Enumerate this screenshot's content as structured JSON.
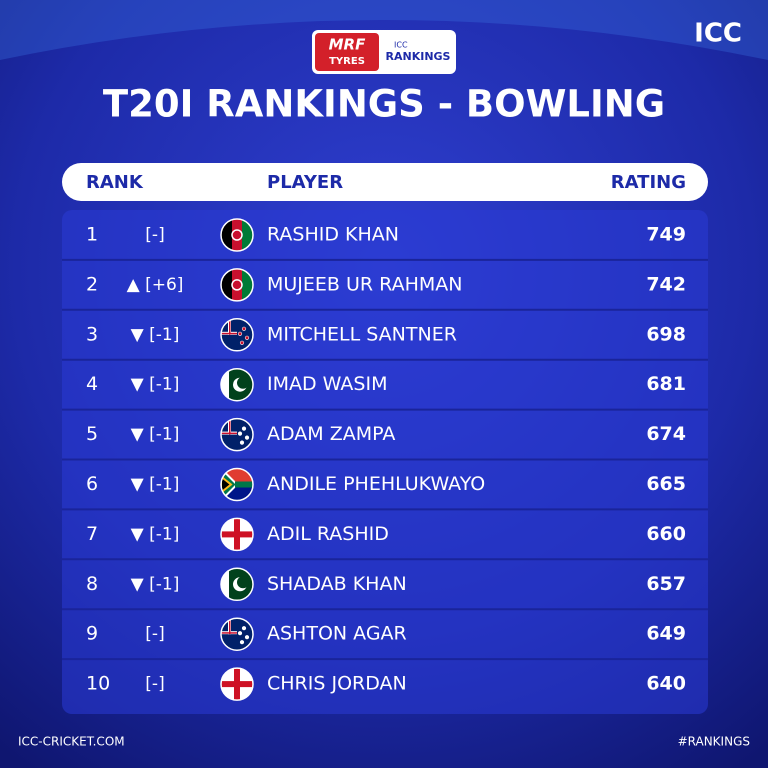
{
  "header": {
    "sponsor_top": "MRF",
    "sponsor_bottom": "TYRES",
    "badge_small": "ICC",
    "badge_text": "RANKINGS",
    "brand": "ICC",
    "title": "T20I RANKINGS - BOWLING"
  },
  "table": {
    "columns": [
      "RANK",
      "PLAYER",
      "RATING"
    ],
    "rows": [
      {
        "rank": 1,
        "change": "[-]",
        "player": "RASHID KHAN",
        "rating": 749
      },
      {
        "rank": 2,
        "change": "▲ [+6]",
        "player": "MUJEEB UR RAHMAN",
        "rating": 742
      },
      {
        "rank": 3,
        "change": "▼ [-1]",
        "player": "MITCHELL SANTNER",
        "rating": 698
      },
      {
        "rank": 4,
        "change": "▼ [-1]",
        "player": "IMAD WASIM",
        "rating": 681
      },
      {
        "rank": 5,
        "change": "▼ [-1]",
        "player": "ADAM ZAMPA",
        "rating": 674
      },
      {
        "rank": 6,
        "change": "▼ [-1]",
        "player": "ANDILE PHEHLUKWAYO",
        "rating": 665
      },
      {
        "rank": 7,
        "change": "▼ [-1]",
        "player": "ADIL RASHID",
        "rating": 660
      },
      {
        "rank": 8,
        "change": "▼ [-1]",
        "player": "SHADAB KHAN",
        "rating": 657
      },
      {
        "rank": 9,
        "change": "[-]",
        "player": "ASHTON AGAR",
        "rating": 649
      },
      {
        "rank": 10,
        "change": "[-]",
        "player": "CHRIS JORDAN",
        "rating": 640
      }
    ]
  },
  "footer": {
    "left": "ICC-CRICKET.COM",
    "right": "#RANKINGS"
  }
}
